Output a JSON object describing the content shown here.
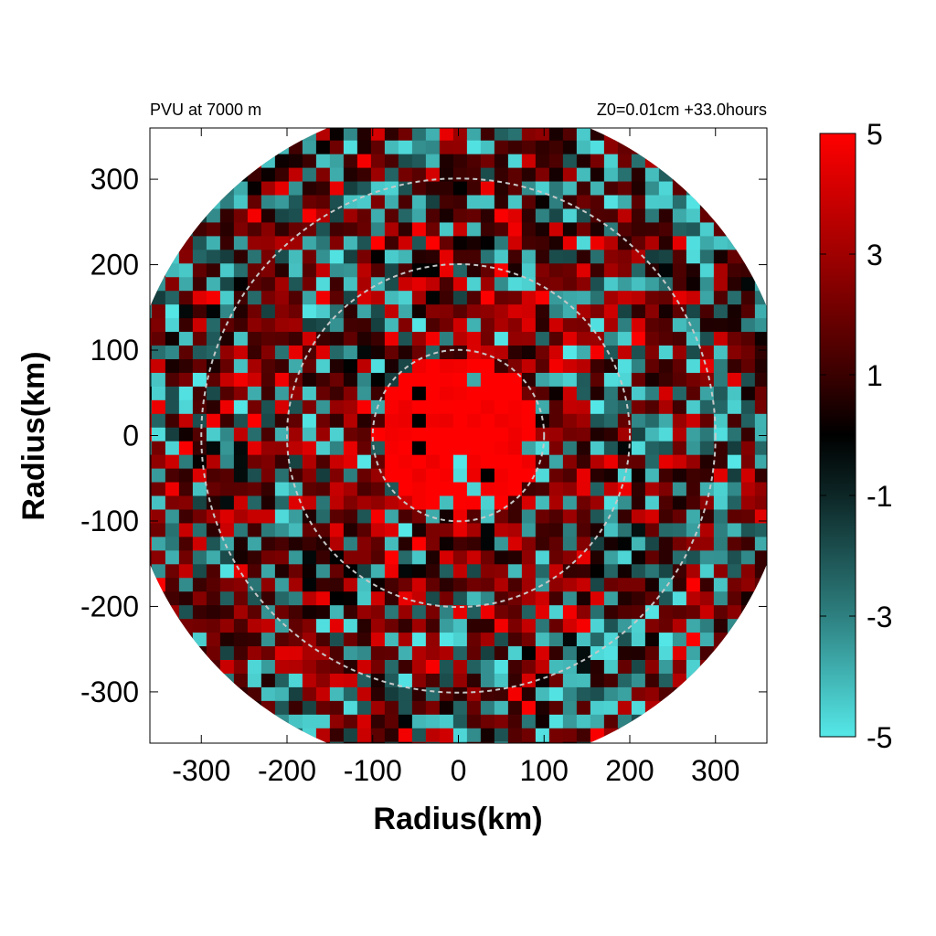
{
  "chart_data": {
    "type": "heatmap",
    "title_left": "PVU at  7000 m",
    "title_right": "Z0=0.01cm  +33.0hours",
    "xlabel": "Radius(km)",
    "ylabel": "Radius(km)",
    "xlim": [
      -360,
      360
    ],
    "ylim": [
      -360,
      360
    ],
    "x_ticks": [
      "-300",
      "-200",
      "-100",
      "0",
      "100",
      "200",
      "300"
    ],
    "y_ticks": [
      "300",
      "200",
      "100",
      "0",
      "-100",
      "-200",
      "-300"
    ],
    "x_tick_values": [
      -300,
      -200,
      -100,
      0,
      100,
      200,
      300
    ],
    "y_tick_values": [
      300,
      200,
      100,
      0,
      -100,
      -200,
      -300
    ],
    "domain_radius_km": 390,
    "range_rings_km": [
      100,
      200,
      300
    ],
    "colorbar": {
      "min": -5,
      "max": 5,
      "tick_values": [
        5,
        3,
        1,
        -1,
        -3,
        -5
      ],
      "tick_labels": [
        "5",
        "3",
        "1",
        "-1",
        "-3",
        "-5"
      ],
      "color_stops": [
        {
          "value": -5,
          "color": "#55e8e8"
        },
        {
          "value": -3,
          "color": "#2e8080"
        },
        {
          "value": -1,
          "color": "#0d2626"
        },
        {
          "value": 0,
          "color": "#000000"
        },
        {
          "value": 1,
          "color": "#3a0000"
        },
        {
          "value": 3,
          "color": "#a00000"
        },
        {
          "value": 5,
          "color": "#ff0000"
        }
      ]
    },
    "ring_color": "#c8c8c8",
    "core_radius_km": 95
  }
}
